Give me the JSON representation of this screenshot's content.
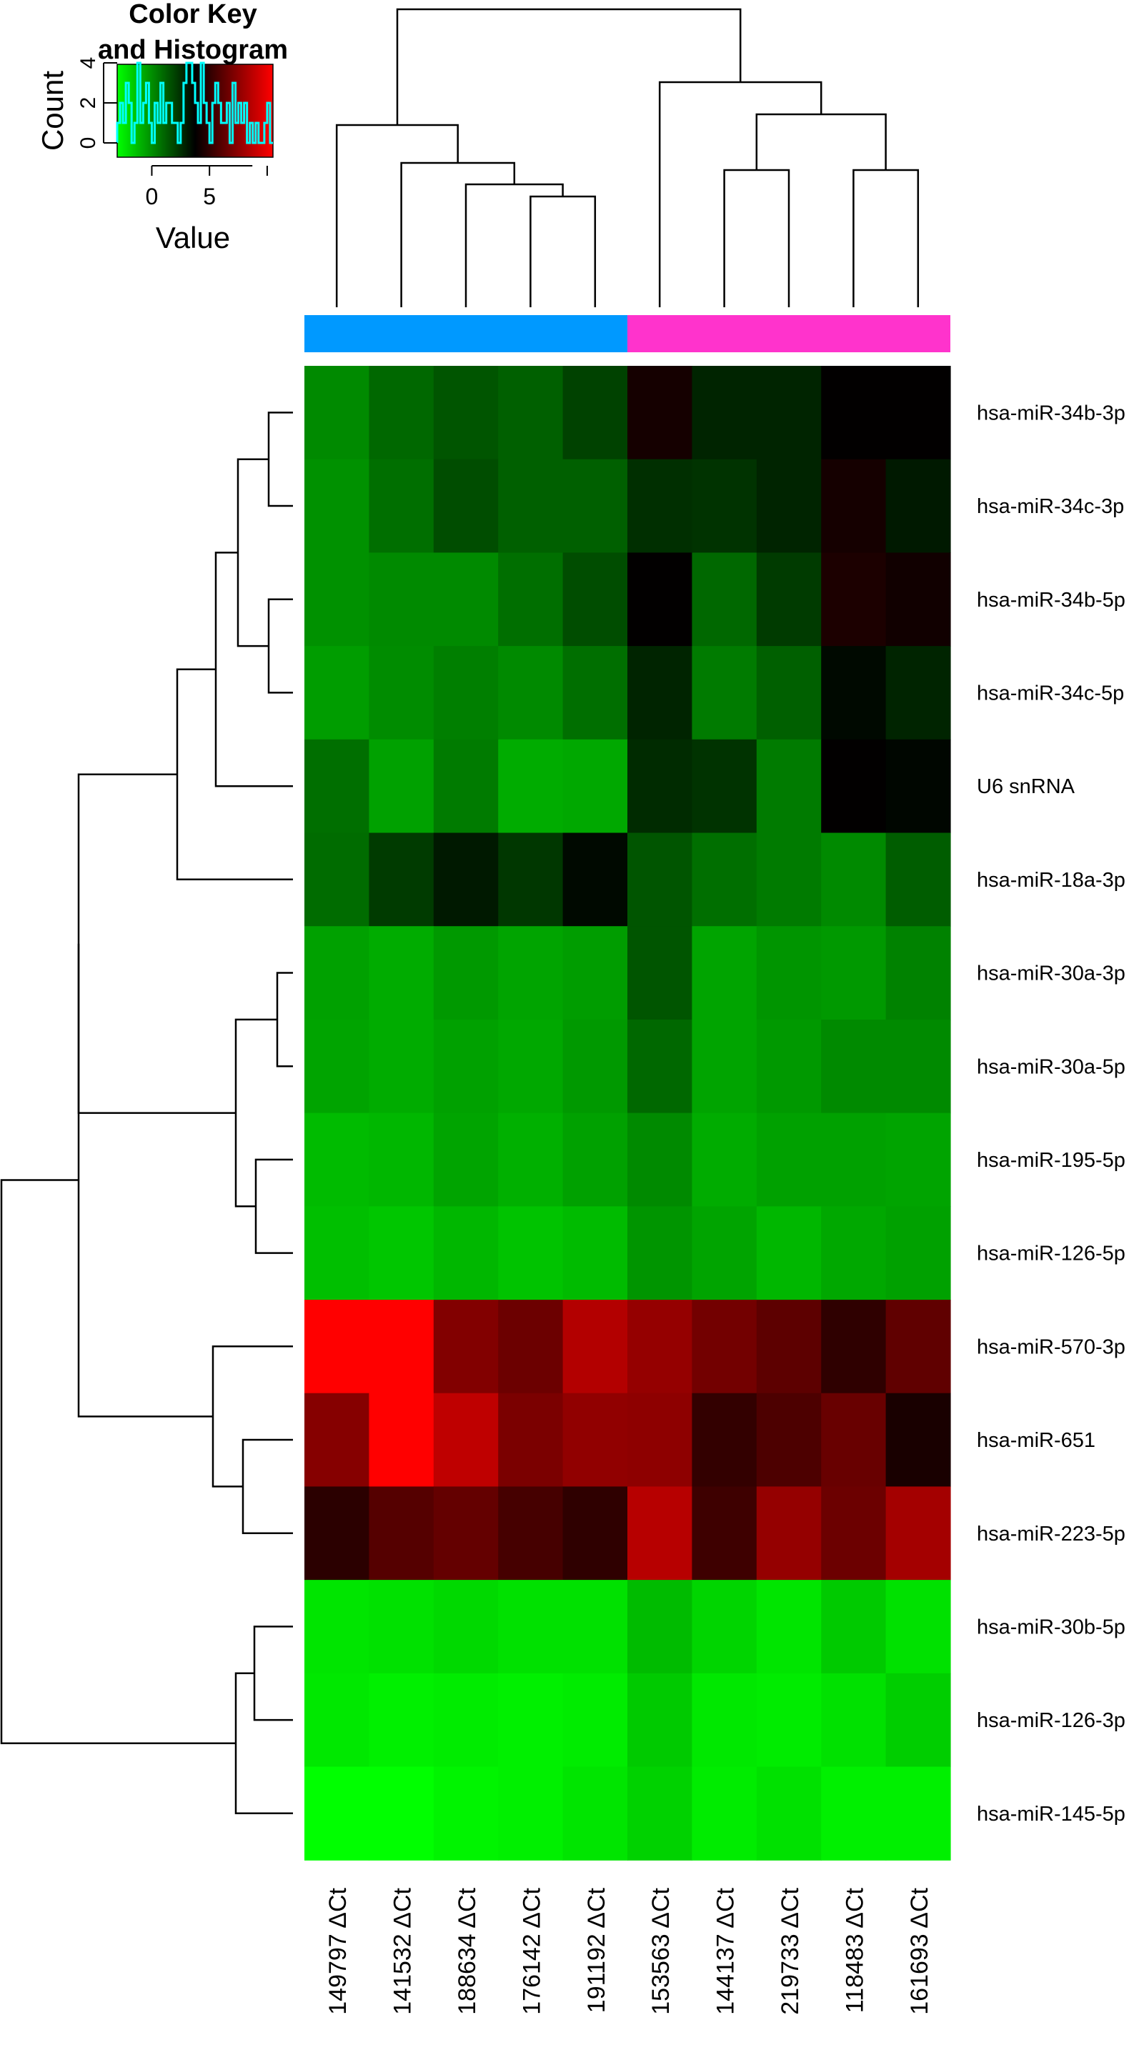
{
  "chart_data": {
    "type": "heatmap",
    "color_key": {
      "title_line1": "Color Key",
      "title_line2": "and Histogram",
      "y_label": "Count",
      "x_label": "Value",
      "x_ticks": [
        "0",
        "5"
      ],
      "y_ticks": [
        "0",
        "2",
        "4"
      ],
      "value_range": [
        -3,
        10.5
      ],
      "colors": {
        "low": "#00ff00",
        "mid": "#000000",
        "high": "#ff0000"
      },
      "histogram_color": "#00ffff",
      "histogram_counts": [
        1,
        2,
        1,
        3,
        2,
        0,
        1,
        4,
        1,
        2,
        3,
        1,
        0,
        2,
        1,
        3,
        1,
        2,
        2,
        1,
        1,
        0,
        1,
        3,
        4,
        4,
        3,
        2,
        1,
        4,
        2,
        1,
        0,
        2,
        3,
        2,
        1,
        1,
        2,
        0,
        3,
        1,
        2,
        1,
        2,
        0,
        1,
        0,
        1,
        0,
        0,
        1,
        2,
        0
      ]
    },
    "column_groups": [
      {
        "color": "#0099ff",
        "start": 0,
        "end": 4
      },
      {
        "color": "#ff33cc",
        "start": 5,
        "end": 9
      }
    ],
    "columns": [
      "149797 ΔCt",
      "141532 ΔCt",
      "188634 ΔCt",
      "176142 ΔCt",
      "191192 ΔCt",
      "153563 ΔCt",
      "144137 ΔCt",
      "219733 ΔCt",
      "118483 ΔCt",
      "161693 ΔCt"
    ],
    "rows": [
      "hsa-miR-34b-3p",
      "hsa-miR-34c-3p",
      "hsa-miR-34b-5p",
      "hsa-miR-34c-5p",
      "U6 snRNA",
      "hsa-miR-18a-3p",
      "hsa-miR-30a-3p",
      "hsa-miR-30a-5p",
      "hsa-miR-195-5p",
      "hsa-miR-126-5p",
      "hsa-miR-570-3p",
      "hsa-miR-651",
      "hsa-miR-223-5p",
      "hsa-miR-30b-5p",
      "hsa-miR-126-3p",
      "hsa-miR-145-5p"
    ],
    "values": [
      [
        0.1,
        1.0,
        1.5,
        1.2,
        2.0,
        4.3,
        2.8,
        2.8,
        3.8,
        3.8
      ],
      [
        -0.1,
        0.8,
        1.7,
        1.2,
        1.2,
        2.5,
        2.4,
        2.8,
        4.3,
        3.1
      ],
      [
        -0.1,
        0.1,
        0.1,
        0.8,
        1.7,
        3.8,
        1.0,
        2.2,
        4.5,
        4.2
      ],
      [
        -0.4,
        0.05,
        0.4,
        0.1,
        0.8,
        2.8,
        0.5,
        1.2,
        3.5,
        2.8
      ],
      [
        0.8,
        -0.5,
        0.5,
        -0.8,
        -0.7,
        2.6,
        2.4,
        0.5,
        3.8,
        3.6
      ],
      [
        0.9,
        2.2,
        3.1,
        2.3,
        3.5,
        1.5,
        0.8,
        0.5,
        0.1,
        1.3
      ],
      [
        -0.5,
        -0.8,
        -0.3,
        -0.6,
        -0.4,
        1.5,
        -0.6,
        -0.2,
        -0.3,
        0.3
      ],
      [
        -0.6,
        -0.8,
        -0.5,
        -0.7,
        -0.3,
        1.0,
        -0.6,
        -0.3,
        0.1,
        0.1
      ],
      [
        -1.2,
        -1.1,
        -0.6,
        -0.9,
        -0.5,
        0.1,
        -0.8,
        -0.5,
        -0.5,
        -0.6
      ],
      [
        -1.3,
        -1.5,
        -1.1,
        -1.4,
        -1.2,
        -0.2,
        -0.6,
        -1.1,
        -0.7,
        -0.5
      ],
      [
        10.5,
        10.5,
        7.2,
        6.6,
        8.5,
        7.7,
        6.8,
        6.2,
        5.0,
        6.3
      ],
      [
        7.3,
        10.5,
        8.8,
        7.0,
        7.6,
        7.5,
        5.1,
        5.8,
        6.5,
        4.4
      ],
      [
        4.9,
        6.0,
        6.4,
        5.6,
        5.0,
        8.6,
        5.4,
        7.7,
        6.6,
        8.1
      ],
      [
        -2.3,
        -2.2,
        -2.0,
        -2.2,
        -2.2,
        -1.2,
        -1.9,
        -2.3,
        -1.6,
        -2.2
      ],
      [
        -2.4,
        -2.6,
        -2.5,
        -2.6,
        -2.5,
        -1.6,
        -2.4,
        -2.5,
        -2.2,
        -1.7
      ],
      [
        -3.0,
        -3.0,
        -2.7,
        -2.6,
        -2.3,
        -1.8,
        -2.5,
        -2.2,
        -2.6,
        -2.6
      ]
    ]
  }
}
